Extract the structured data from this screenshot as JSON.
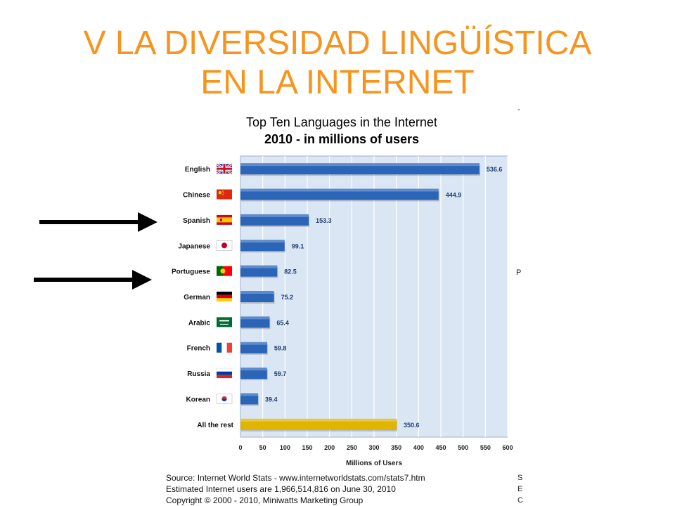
{
  "slide": {
    "title_line1": "V LA DIVERSIDAD LINGÜÍSTICA",
    "title_line2": "EN LA INTERNET"
  },
  "edge_marks": {
    "right_mid": "P",
    "right_bottom_1": "S",
    "right_bottom_2": "E",
    "right_bottom_3": "C"
  },
  "annotations": {
    "arrows_point_to": [
      "Spanish",
      "Portuguese"
    ]
  },
  "source": {
    "line1": "Source: Internet World Stats - www.internetworldstats.com/stats7.htm",
    "line2": "Estimated Internet users are 1,966,514,816 on June 30, 2010",
    "line3": "Copyright © 2000 - 2010, Miniwatts Marketing Group"
  },
  "colors": {
    "title": "#f7941d",
    "bar": "#2a65b8",
    "bar_rest": "#e0b400",
    "plot_bg": "#dbe6f4",
    "arrow": "#000000"
  },
  "chart_data": {
    "type": "bar",
    "orientation": "horizontal",
    "title_line1": "Top Ten Languages in the Internet",
    "title_line2": "2010 - in millions of users",
    "xlabel": "Millions of Users",
    "ylabel": "",
    "xlim": [
      0,
      600
    ],
    "xticks": [
      0,
      50,
      100,
      150,
      200,
      250,
      300,
      350,
      400,
      450,
      500,
      550,
      600
    ],
    "grid": true,
    "categories": [
      "English",
      "Chinese",
      "Spanish",
      "Japanese",
      "Portuguese",
      "German",
      "Arabic",
      "French",
      "Russia",
      "Korean",
      "All the rest"
    ],
    "values": [
      536.6,
      444.9,
      153.3,
      99.1,
      82.5,
      75.2,
      65.4,
      59.8,
      59.7,
      39.4,
      350.6
    ],
    "value_labels": [
      "536.6",
      "444.9",
      "153.3",
      "99.1",
      "82.5",
      "75.2",
      "65.4",
      "59.8",
      "59.7",
      "39.4",
      "350.6"
    ],
    "flags": [
      "uk-flag",
      "china-flag",
      "spain-flag",
      "japan-flag",
      "portugal-flag",
      "germany-flag",
      "saudi-flag",
      "france-flag",
      "russia-flag",
      "korea-flag",
      ""
    ]
  }
}
